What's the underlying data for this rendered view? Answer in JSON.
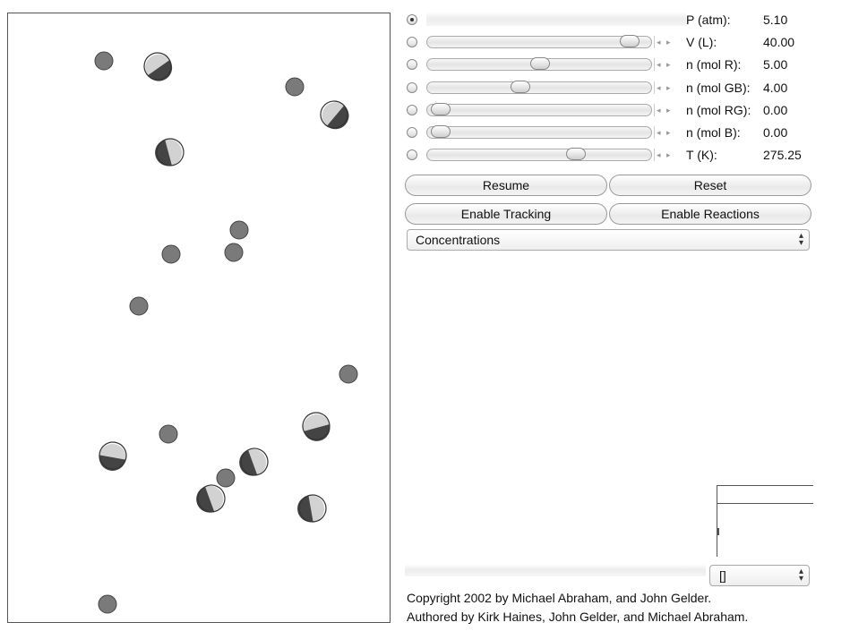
{
  "controls": [
    {
      "id": "pressure",
      "label": "P (atm):",
      "value": "5.10",
      "selected": true,
      "slider": false
    },
    {
      "id": "volume",
      "label": "V (L):",
      "value": "40.00",
      "selected": false,
      "slider": true,
      "level": 0.95
    },
    {
      "id": "mol-r",
      "label": "n (mol R):",
      "value": "5.00",
      "selected": false,
      "slider": true,
      "level": 0.5
    },
    {
      "id": "mol-gb",
      "label": "n (mol GB):",
      "value": "4.00",
      "selected": false,
      "slider": true,
      "level": 0.4
    },
    {
      "id": "mol-rg",
      "label": "n (mol RG):",
      "value": "0.00",
      "selected": false,
      "slider": true,
      "level": 0.0
    },
    {
      "id": "mol-b",
      "label": "n (mol B):",
      "value": "0.00",
      "selected": false,
      "slider": true,
      "level": 0.0
    },
    {
      "id": "temperature",
      "label": "T (K):",
      "value": "275.25",
      "selected": false,
      "slider": true,
      "level": 0.68
    }
  ],
  "buttons": {
    "resume": "Resume",
    "reset": "Reset",
    "enable_tracking": "Enable Tracking",
    "enable_reactions": "Enable Reactions"
  },
  "graph_select": {
    "value": "Concentrations",
    "arrows": "▴▾"
  },
  "small_select": {
    "value": "[]",
    "arrows": "▴▾"
  },
  "copyright": {
    "line1": "Copyright 2002 by Michael Abraham, and John Gelder.",
    "line2": "Authored by Kirk Haines, John Gelder, and Michael Abraham."
  },
  "slider_arrows": "◂ ▸",
  "colors": {
    "particle_fill": "#7a7a7a",
    "particle_stroke": "#444444",
    "half_dark": "#444444",
    "half_light": "#d2d2d2"
  }
}
